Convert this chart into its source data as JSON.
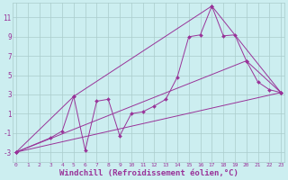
{
  "bg_color": "#cceef0",
  "grid_color": "#aacccc",
  "line_color": "#993399",
  "marker_color": "#993399",
  "xlabel": "Windchill (Refroidissement éolien,°C)",
  "xlabel_fontsize": 6.5,
  "ytick_labels": [
    "-3",
    "-1",
    "1",
    "3",
    "5",
    "7",
    "9",
    "11"
  ],
  "ytick_vals": [
    -3,
    -1,
    1,
    3,
    5,
    7,
    9,
    11
  ],
  "xtick_vals": [
    0,
    1,
    2,
    3,
    4,
    5,
    6,
    7,
    8,
    9,
    10,
    11,
    12,
    13,
    14,
    15,
    16,
    17,
    18,
    19,
    20,
    21,
    22,
    23
  ],
  "ylim": [
    -4.0,
    12.5
  ],
  "xlim": [
    -0.3,
    23.3
  ],
  "series": [
    [
      0,
      -3.0
    ],
    [
      3,
      -1.5
    ],
    [
      4,
      -0.8
    ],
    [
      5,
      2.8
    ],
    [
      6,
      -2.8
    ],
    [
      7,
      2.3
    ],
    [
      8,
      2.5
    ],
    [
      9,
      -1.3
    ],
    [
      10,
      1.0
    ],
    [
      11,
      1.2
    ],
    [
      12,
      1.8
    ],
    [
      13,
      2.5
    ],
    [
      14,
      4.8
    ],
    [
      15,
      9.0
    ],
    [
      16,
      9.2
    ],
    [
      17,
      12.2
    ],
    [
      18,
      9.1
    ],
    [
      19,
      9.2
    ],
    [
      20,
      6.5
    ],
    [
      21,
      4.3
    ],
    [
      22,
      3.5
    ],
    [
      23,
      3.2
    ]
  ],
  "line2": [
    [
      0,
      -3.0
    ],
    [
      5,
      2.8
    ],
    [
      17,
      12.2
    ],
    [
      23,
      3.2
    ]
  ],
  "line3": [
    [
      0,
      -3.0
    ],
    [
      20,
      6.5
    ],
    [
      23,
      3.2
    ]
  ],
  "line4": [
    [
      0,
      -3.0
    ],
    [
      23,
      3.2
    ]
  ]
}
